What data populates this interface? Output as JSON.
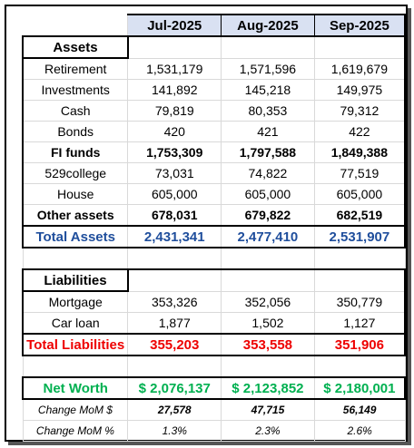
{
  "months": [
    "Jul-2025",
    "Aug-2025",
    "Sep-2025"
  ],
  "assets": {
    "heading": "Assets",
    "rows": [
      {
        "label": "Retirement",
        "v": [
          "1,531,179",
          "1,571,596",
          "1,619,679"
        ]
      },
      {
        "label": "Investments",
        "v": [
          "141,892",
          "145,218",
          "149,975"
        ]
      },
      {
        "label": "Cash",
        "v": [
          "79,819",
          "80,353",
          "79,312"
        ]
      },
      {
        "label": "Bonds",
        "v": [
          "420",
          "421",
          "422"
        ]
      }
    ],
    "fi_funds": {
      "label": "FI funds",
      "v": [
        "1,753,309",
        "1,797,588",
        "1,849,388"
      ]
    },
    "rows2": [
      {
        "label": "529college",
        "v": [
          "73,031",
          "74,822",
          "77,519"
        ]
      },
      {
        "label": "House",
        "v": [
          "605,000",
          "605,000",
          "605,000"
        ]
      }
    ],
    "other": {
      "label": "Other assets",
      "v": [
        "678,031",
        "679,822",
        "682,519"
      ]
    },
    "total": {
      "label": "Total Assets",
      "v": [
        "2,431,341",
        "2,477,410",
        "2,531,907"
      ]
    }
  },
  "liabilities": {
    "heading": "Liabilities",
    "rows": [
      {
        "label": "Mortgage",
        "v": [
          "353,326",
          "352,056",
          "350,779"
        ]
      },
      {
        "label": "Car loan",
        "v": [
          "1,877",
          "1,502",
          "1,127"
        ]
      }
    ],
    "total": {
      "label": "Total Liabilities",
      "v": [
        "355,203",
        "353,558",
        "351,906"
      ]
    }
  },
  "net_worth": {
    "label": "Net Worth",
    "v": [
      "$ 2,076,137",
      "$ 2,123,852",
      "$ 2,180,001"
    ]
  },
  "change_mom_dollar": {
    "label": "Change MoM $",
    "v": [
      "27,578",
      "47,715",
      "56,149"
    ]
  },
  "change_mom_pct": {
    "label": "Change MoM %",
    "v": [
      "1.3%",
      "2.3%",
      "2.6%"
    ]
  },
  "colors": {
    "total_assets": "#1f4e9c",
    "total_liabilities": "#ee0000",
    "net_worth": "#00b050",
    "header_fill": "#d9e1f2"
  }
}
